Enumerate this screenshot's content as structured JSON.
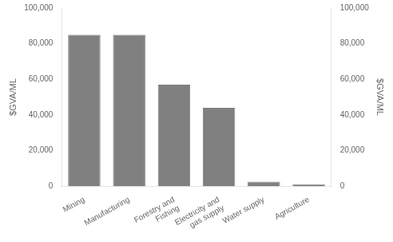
{
  "chart_data": {
    "type": "bar",
    "categories": [
      "Mining",
      "Manufacturing",
      "Forestry and\nFishing",
      "Electricity and\ngas supply",
      "Water supply",
      "Agriculture"
    ],
    "values": [
      85000,
      85000,
      57000,
      44000,
      2500,
      1000
    ],
    "color": "#808080",
    "ylabel": "$GVA/ML",
    "y2label": "$GVA/ML",
    "ylim": [
      0,
      100000
    ],
    "yticks": [
      0,
      {
        "value": 20000,
        "label": "20,000"
      },
      {
        "value": 40000,
        "label": "40,000"
      },
      {
        "value": 60000,
        "label": "60,000"
      },
      {
        "value": 80000,
        "label": "80,000"
      },
      {
        "value": 100000,
        "label": "100,000"
      }
    ],
    "y2lim": [
      0,
      100000
    ],
    "y2ticks": [
      0,
      {
        "value": 20000,
        "label": "20,000"
      },
      {
        "value": 40000,
        "label": "40,000"
      },
      {
        "value": 60000,
        "label": "60,000"
      },
      {
        "value": 80000,
        "label": "80,000"
      },
      {
        "value": 100000,
        "label": "100,000"
      }
    ],
    "grid": false,
    "legend": false
  }
}
